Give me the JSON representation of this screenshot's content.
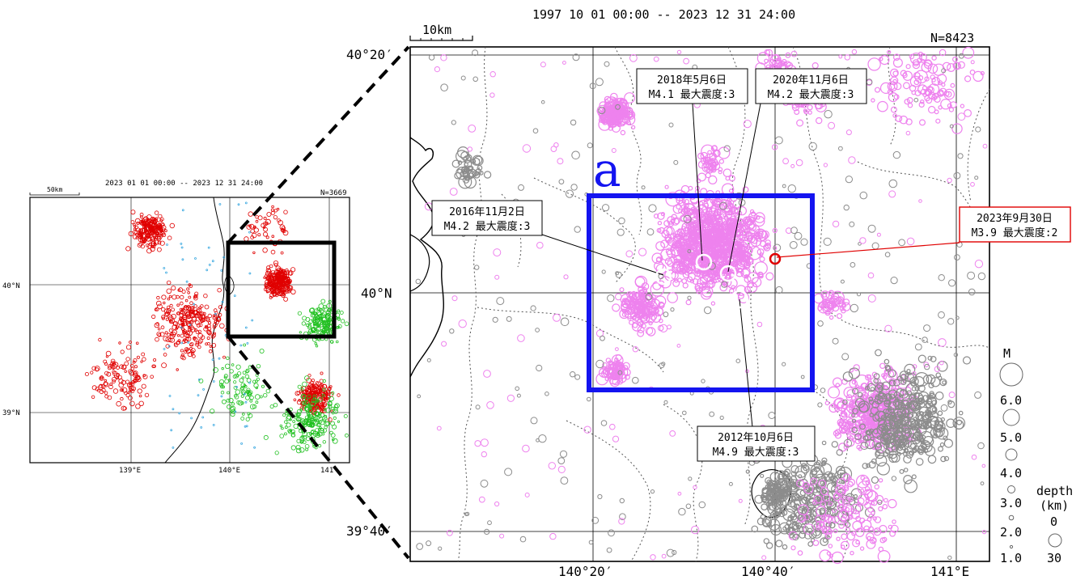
{
  "left_map": {
    "period": "2023 01 01 00:00 -- 2023 12 31 24:00",
    "count": "N=3669",
    "scale": "50km",
    "lat_labels": [
      "40°N",
      "39°N"
    ],
    "lon_labels": [
      "139°E",
      "140°E",
      "141"
    ]
  },
  "main_map": {
    "period": "1997 10 01 00:00 -- 2023 12 31 24:00",
    "count": "N=8423",
    "scale": "10km",
    "lat_labels": [
      "40°20′",
      "40°N",
      "39°40′"
    ],
    "lon_labels": [
      "140°20′",
      "140°40′",
      "141°E"
    ],
    "region_label": "a",
    "colors": {
      "region": "#1414f0",
      "recent": "#e00000",
      "pink": "#ee82ee",
      "gray": "#8c8c8c"
    },
    "annotations": [
      {
        "date": "2018年5月6日",
        "info": "M4.1 最大震度:3"
      },
      {
        "date": "2020年11月6日",
        "info": "M4.2 最大震度:3"
      },
      {
        "date": "2016年11月2日",
        "info": "M4.2 最大震度:3"
      },
      {
        "date": "2023年9月30日",
        "info": "M3.9 最大震度:2"
      },
      {
        "date": "2012年10月6日",
        "info": "M4.9 最大震度:3"
      }
    ]
  },
  "legend": {
    "m_title": "M",
    "m_values": [
      "6.0",
      "5.0",
      "4.0",
      "3.0",
      "2.0",
      "1.0"
    ],
    "depth_title": "depth",
    "depth_unit": "(km)",
    "depth_values": [
      "0",
      "30"
    ]
  }
}
